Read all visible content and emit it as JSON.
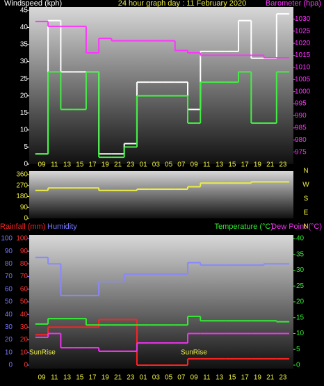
{
  "chart_data": [
    {
      "type": "step",
      "title": "24 hour graph day : 11 February 2020",
      "y_label": "Windspeed (kph)",
      "y2_label": "Barometer (hpa)",
      "categories": [
        "09",
        "11",
        "13",
        "15",
        "17",
        "19",
        "21",
        "23",
        "01",
        "03",
        "05",
        "07",
        "09",
        "11",
        "13",
        "15",
        "17",
        "19",
        "21",
        "23"
      ],
      "ylim": [
        0,
        46
      ],
      "yticks": [
        0,
        5,
        10,
        15,
        20,
        25,
        30,
        35,
        40,
        45
      ],
      "ycolor": "#ffffff",
      "y2lim": [
        970,
        1035
      ],
      "y2ticks": [
        975,
        980,
        985,
        990,
        995,
        1000,
        1005,
        1010,
        1015,
        1020,
        1025,
        1030
      ],
      "y2color": "#ff33ff",
      "series": [
        {
          "color": "#ffffff",
          "axis": "y",
          "values": [
            3,
            42,
            27,
            27,
            27,
            3,
            3,
            6,
            24,
            24,
            24,
            24,
            16,
            33,
            33,
            33,
            42,
            31,
            31,
            44
          ]
        },
        {
          "color": "#44ee44",
          "axis": "y",
          "values": [
            3,
            27,
            16,
            16,
            27,
            2,
            2,
            5,
            20,
            20,
            20,
            20,
            12,
            24,
            24,
            24,
            27,
            12,
            12,
            27
          ]
        },
        {
          "color": "#ff33ff",
          "axis": "y2",
          "values": [
            1029,
            1027,
            1027,
            1027,
            1016,
            1022,
            1021,
            1021,
            1021,
            1021,
            1021,
            1017,
            1016,
            1015,
            1015,
            1015,
            1015,
            1015,
            1014,
            1014
          ]
        }
      ]
    },
    {
      "type": "step",
      "ylim": [
        0,
        360
      ],
      "yticks": [
        0,
        90,
        180,
        270,
        360
      ],
      "ycolor": "#eeee44",
      "compass": [
        "N",
        "W",
        "S",
        "E",
        "N"
      ],
      "series": [
        {
          "color": "#eeee44",
          "axis": "y",
          "values": [
            230,
            250,
            250,
            250,
            250,
            230,
            230,
            230,
            240,
            240,
            240,
            240,
            260,
            290,
            290,
            290,
            290,
            300,
            300,
            300
          ]
        }
      ]
    },
    {
      "type": "step",
      "categories": [
        "09",
        "11",
        "13",
        "15",
        "17",
        "19",
        "21",
        "23",
        "01",
        "03",
        "05",
        "07",
        "09",
        "11",
        "13",
        "15",
        "17",
        "19",
        "21",
        "23"
      ],
      "ylim": [
        0,
        100
      ],
      "yticks": [
        0,
        10,
        20,
        30,
        40,
        50,
        60,
        70,
        80,
        90,
        100
      ],
      "ycolor": "#ff3333",
      "y3lim": [
        0,
        100
      ],
      "y3ticks": [
        0,
        10,
        20,
        30,
        40,
        50,
        60,
        70,
        80,
        90,
        100
      ],
      "y3color": "#7777ff",
      "y2lim": [
        0,
        40
      ],
      "y2ticks": [
        0,
        5,
        10,
        15,
        20,
        25,
        30,
        35,
        40
      ],
      "y2color": "#33ee33",
      "annotations": [
        "SunRise",
        "SunRise"
      ],
      "series": [
        {
          "name": "Rainfall (mm)",
          "color": "#ff2222",
          "axis": "y",
          "values": [
            24,
            30,
            30,
            30,
            30,
            36,
            36,
            36,
            0,
            0,
            0,
            0,
            5,
            5,
            5,
            5,
            5,
            5,
            5,
            5
          ]
        },
        {
          "name": "Humidity",
          "color": "#8888ff",
          "axis": "y3",
          "values": [
            85,
            80,
            55,
            55,
            55,
            66,
            66,
            72,
            72,
            72,
            72,
            72,
            81,
            79,
            79,
            79,
            79,
            79,
            80,
            80
          ]
        },
        {
          "name": "Temperature (°C)",
          "color": "#33ee33",
          "axis": "y2",
          "values": [
            13,
            14.7,
            14.7,
            14.7,
            12.7,
            12.7,
            12.7,
            12.7,
            12.7,
            12.7,
            12.7,
            12.7,
            15.4,
            14,
            14,
            14,
            14,
            14,
            14,
            13.7
          ]
        },
        {
          "name": "Dew Point (°C)",
          "color": "#ee33ee",
          "axis": "y2",
          "values": [
            8.8,
            10,
            5.5,
            5.5,
            5.5,
            4.4,
            4.4,
            4.4,
            7,
            7,
            7,
            7,
            10,
            10,
            10,
            10,
            10,
            10,
            10,
            10
          ]
        }
      ]
    }
  ]
}
